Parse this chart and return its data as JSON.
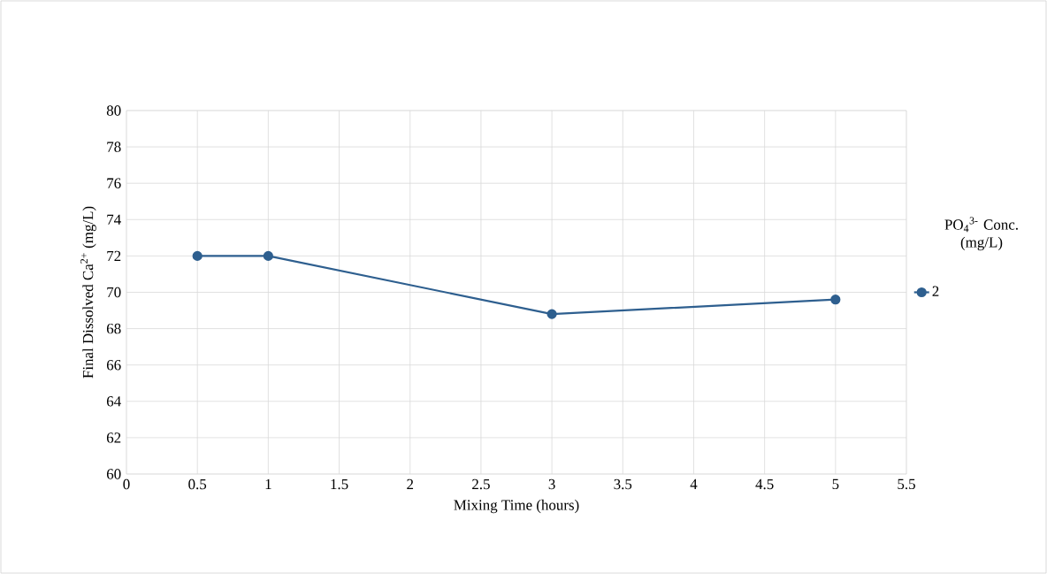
{
  "chart_data": {
    "type": "line",
    "xlabel": "Mixing Time (hours)",
    "ylabel": "Final Dissolved Ca$^{2+}$ (mg/L)",
    "legend_title": "PO$_{4}$$^{3-}$ Conc. (mg/L)",
    "x": [
      0.5,
      1,
      3,
      5
    ],
    "series": [
      {
        "name": "2",
        "color": "#2e5f8f",
        "values": [
          72,
          72,
          68.8,
          69.6
        ]
      }
    ],
    "xlim": [
      0,
      5.5
    ],
    "xticks": [
      0,
      0.5,
      1,
      1.5,
      2,
      2.5,
      3,
      3.5,
      4,
      4.5,
      5,
      5.5
    ],
    "ylim": [
      60,
      80
    ],
    "yticks": [
      60,
      62,
      64,
      66,
      68,
      70,
      72,
      74,
      76,
      78,
      80
    ],
    "grid": true,
    "legend": "right",
    "marker": "circle",
    "line_style": "solid"
  }
}
